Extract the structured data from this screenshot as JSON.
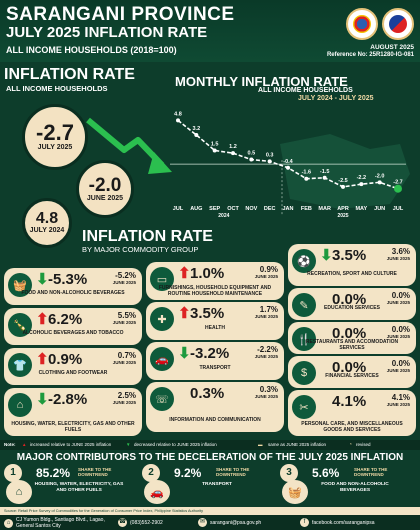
{
  "header": {
    "title": "SARANGANI PROVINCE",
    "subtitle": "JULY 2025 INFLATION RATE",
    "base": "ALL INCOME HOUSEHOLDS (2018=100)",
    "date": "AUGUST 2025",
    "reference": "Reference No: 25R1280-IG-081",
    "logos": [
      "psa-seal-icon",
      "bagong-pilipinas-logo"
    ]
  },
  "inflation": {
    "title": "INFLATION RATE",
    "subtitle": "ALL INCOME HOUSEHOLDS",
    "current": {
      "value": "-2.7",
      "label": "JULY 2025"
    },
    "previous": {
      "value": "-2.0",
      "label": "JUNE 2025"
    },
    "last_year": {
      "value": "4.8",
      "label": "JULY 2024"
    }
  },
  "monthly": {
    "title": "MONTHLY INFLATION RATE",
    "subtitle": "ALL INCOME HOUSEHOLDS",
    "range": "JULY 2024 - JULY 2025"
  },
  "chart_data": {
    "type": "line",
    "categories": [
      "JUL",
      "AUG",
      "SEP",
      "OCT",
      "NOV",
      "DEC",
      "JAN",
      "FEB",
      "MAR",
      "APR",
      "MAY",
      "JUN",
      "JUL"
    ],
    "values": [
      4.8,
      3.2,
      1.5,
      1.2,
      0.5,
      0.3,
      -0.4,
      -1.6,
      -1.5,
      -2.5,
      -2.2,
      -2.0,
      -2.7
    ],
    "labels": [
      "4.8",
      "3.2",
      "1.5",
      "1.2",
      "0.5",
      "0.3",
      "-0.4",
      "-1.6",
      "-1.5",
      "-2.5",
      "-2.2",
      "-2.0",
      "-2.7"
    ],
    "year_labels": [
      "2024",
      "2025"
    ],
    "ylim": [
      -3.5,
      5.5
    ]
  },
  "commodity": {
    "title": "INFLATION RATE",
    "subtitle": "BY MAJOR COMMODITY GROUP"
  },
  "cards": [
    {
      "dir": "down",
      "value": "-5.3%",
      "prev": "-5.2%",
      "prev_label": "JUNE 2025",
      "label": "FOOD AND NON-ALCOHOLIC BEVERAGES",
      "icon": "food-basket-icon"
    },
    {
      "dir": "up",
      "value": "6.2%",
      "prev": "5.5%",
      "prev_label": "JUNE 2025",
      "label": "ALCOHOLIC BEVERAGES AND TOBACCO",
      "icon": "bottle-icon"
    },
    {
      "dir": "up",
      "value": "0.9%",
      "prev": "0.7%",
      "prev_label": "JUNE 2025",
      "label": "CLOTHING AND FOOTWEAR",
      "icon": "shirt-icon"
    },
    {
      "dir": "down",
      "value": "-2.8%",
      "prev": "2.5%",
      "prev_label": "JUNE 2025",
      "label": "HOUSING, WATER, ELECTRICITY, GAS AND OTHER FUELS",
      "icon": "house-icon"
    },
    {
      "dir": "up",
      "value": "1.0%",
      "prev": "0.9%",
      "prev_label": "JUNE 2025",
      "label": "FURNISHINGS, HOUSEHOLD EQUIPMENT AND ROUTINE HOUSEHOLD MAINTENANCE",
      "icon": "sofa-icon"
    },
    {
      "dir": "up",
      "value": "3.5%",
      "prev": "1.7%",
      "prev_label": "JUNE 2025",
      "label": "HEALTH",
      "icon": "health-icon"
    },
    {
      "dir": "down",
      "value": "-3.2%",
      "prev": "-2.2%",
      "prev_label": "JUNE 2025",
      "label": "TRANSPORT",
      "icon": "car-icon"
    },
    {
      "dir": "none",
      "value": "0.3%",
      "prev": "0.3%",
      "prev_label": "JUNE 2025",
      "label": "INFORMATION AND COMMUNICATION",
      "icon": "phone-icon"
    },
    {
      "dir": "down",
      "value": "3.5%",
      "prev": "3.6%",
      "prev_label": "JUNE 2025",
      "label": "RECREATION, SPORT AND CULTURE",
      "icon": "sport-icon"
    },
    {
      "dir": "none",
      "value": "0.0%",
      "prev": "0.0%",
      "prev_label": "JUNE 2025",
      "label": "EDUCATION SERVICES",
      "icon": "education-icon"
    },
    {
      "dir": "none",
      "value": "0.0%",
      "prev": "0.0%",
      "prev_label": "JUNE 2025",
      "label": "RESTAURANTS AND ACCOMODATION SERVICES",
      "icon": "restaurant-icon"
    },
    {
      "dir": "none",
      "value": "0.0%",
      "prev": "0.0%",
      "prev_label": "JUNE 2025",
      "label": "FINANCIAL SERVICES",
      "icon": "money-icon"
    },
    {
      "dir": "none",
      "value": "4.1%",
      "prev": "4.1%",
      "prev_label": "JUNE 2025",
      "label": "PERSONAL CARE, AND MISCELLANEOUS GOODS AND SERVICES",
      "icon": "personal-care-icon"
    }
  ],
  "legend": {
    "note": "Note:",
    "up": "increased relative to JUNE 2025 inflation",
    "down": "decreased relative to JUNE 2025 inflation",
    "same": "same as JUNE 2025 inflation",
    "revised": "revised"
  },
  "contributors": {
    "title": "MAJOR CONTRIBUTORS TO THE DECELERATION OF THE JULY 2025 INFLATION",
    "items": [
      {
        "num": "1",
        "pct": "85.2%",
        "share": "SHARE TO THE DOWNTREND",
        "label": "HOUSING, WATER, ELECTRICITY, GAS AND OTHER FUELS",
        "icon": "house-icon"
      },
      {
        "num": "2",
        "pct": "9.2%",
        "share": "SHARE TO THE DOWNTREND",
        "label": "TRANSPORT",
        "icon": "car-icon"
      },
      {
        "num": "3",
        "pct": "5.6%",
        "share": "SHARE TO THE DOWNTREND",
        "label": "FOOD AND NON-ALCOHOLIC BEVERAGES",
        "icon": "food-basket-icon"
      }
    ]
  },
  "source": "Source: Retail Price Survey of Commodities for the Generation of Consumer Price Index, Philippine Statistics Authority",
  "footer": {
    "address": "CJ Yumon Bldg., Santiago Blvd., Lagao, General Santos City",
    "phone": "(083)552-2902",
    "email": "sarangani@psa.gov.ph",
    "facebook": "facebook.com/saranganipsa"
  }
}
